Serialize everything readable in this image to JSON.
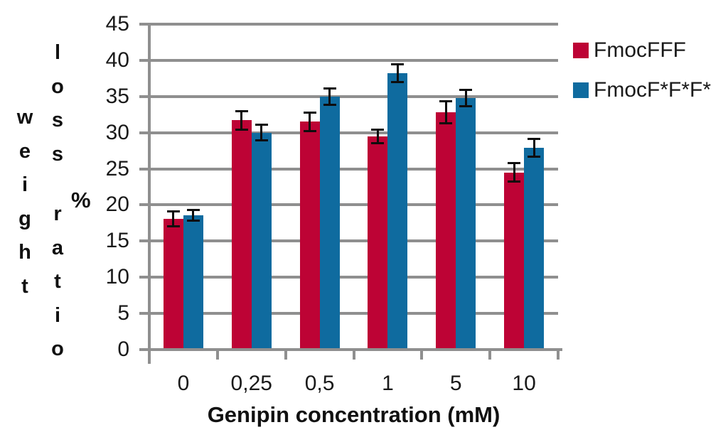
{
  "chart_data": {
    "type": "bar",
    "xlabel": "Genipin concentration (mM)",
    "ylabel": "weight loss ratio %",
    "categories": [
      "0",
      "0,25",
      "0,5",
      "1",
      "5",
      "10"
    ],
    "series": [
      {
        "name": "FmocFFF",
        "color": "#BD0335",
        "values": [
          18.1,
          31.7,
          31.5,
          29.5,
          32.8,
          24.5
        ],
        "errors": [
          1.1,
          1.3,
          1.3,
          1.0,
          1.6,
          1.3
        ]
      },
      {
        "name": "FmocF*F*F*",
        "color": "#0F6B9F",
        "values": [
          18.6,
          30.0,
          35.0,
          38.2,
          34.8,
          27.9
        ],
        "errors": [
          0.8,
          1.1,
          1.2,
          1.3,
          1.2,
          1.3
        ]
      }
    ],
    "ylim": [
      0,
      45
    ],
    "yticks": [
      0,
      5,
      10,
      15,
      20,
      25,
      30,
      35,
      40,
      45
    ],
    "grid": true,
    "legend_position": "top-right",
    "gridline_color": "#8F8F8F",
    "axis_color": "#8F8F8F",
    "errorbar_color": "#0D0D0D",
    "text_color": "#1A1A1A",
    "background": "#FFFFFF"
  }
}
